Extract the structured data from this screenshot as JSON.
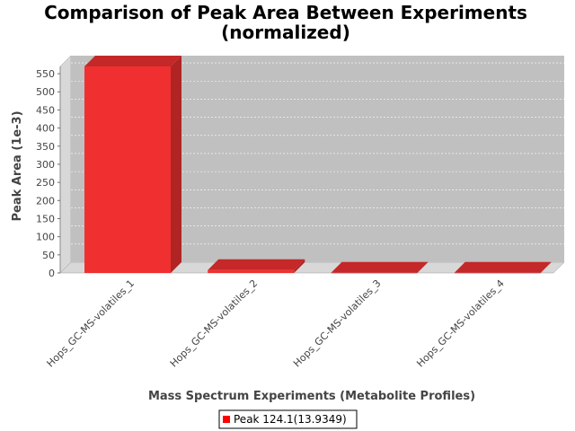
{
  "chart_data": {
    "type": "bar",
    "title": "Comparison of Peak Area Between Experiments",
    "subtitle": "(normalized)",
    "xlabel": "Mass Spectrum Experiments (Metabolite Profiles)",
    "ylabel": "Peak Area (1e-3)",
    "categories": [
      "Hops_GC-MS-volatiles_1",
      "Hops_GC-MS-volatiles_2",
      "Hops_GC-MS-volatiles_3",
      "Hops_GC-MS-volatiles_4"
    ],
    "series": [
      {
        "name": "Peak 124.1(13.9349)",
        "values": [
          570,
          8,
          0.5,
          0.5
        ]
      }
    ],
    "ylim": [
      0,
      570
    ],
    "yticks": [
      0,
      50,
      100,
      150,
      200,
      250,
      300,
      350,
      400,
      450,
      500,
      550
    ],
    "grid": true,
    "legend_position": "bottom-center",
    "colors": {
      "bar": "#f03030",
      "bar_top": "#c42828",
      "bar_side": "#b02424",
      "plot_bg": "#c0c0c0",
      "plot_wall": "#d8d8d8",
      "grid": "#ffffff"
    }
  }
}
